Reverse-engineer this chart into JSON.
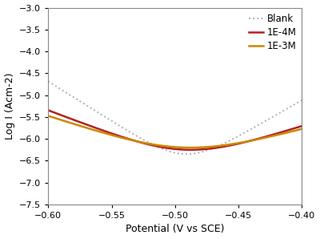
{
  "title": "",
  "xlabel": "Potential (V vs SCE)",
  "ylabel": "Log I (Acm-2)",
  "xlim": [
    -0.6,
    -0.4
  ],
  "ylim": [
    -7.5,
    -3.0
  ],
  "xticks": [
    -0.6,
    -0.55,
    -0.5,
    -0.45,
    -0.4
  ],
  "yticks": [
    -7.5,
    -7.0,
    -6.5,
    -6.0,
    -5.5,
    -5.0,
    -4.5,
    -4.0,
    -3.5,
    -3.0
  ],
  "legend": [
    "Blank",
    "1E-4M",
    "1E-3M"
  ],
  "colors": [
    "#b0b0b0",
    "#b22222",
    "#cc8800"
  ],
  "linestyles": [
    "dotted",
    "solid",
    "solid"
  ],
  "linewidths": [
    1.4,
    1.8,
    1.8
  ],
  "background": "#ffffff",
  "curves": {
    "blank": {
      "ecorr": -0.492,
      "icorr_log": -6.65,
      "ba": 0.06,
      "bc": 0.055
    },
    "1e4m": {
      "ecorr": -0.492,
      "icorr_log": -6.55,
      "ba": 0.11,
      "bc": 0.09
    },
    "1e3m": {
      "ecorr": -0.493,
      "icorr_log": -6.5,
      "ba": 0.13,
      "bc": 0.105
    }
  }
}
